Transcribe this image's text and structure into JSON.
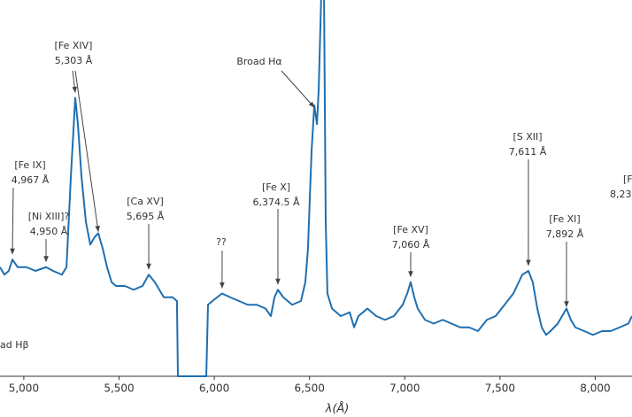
{
  "chart_data": {
    "type": "line",
    "x_label": "λ(Å)",
    "x": [
      4875,
      4898,
      4921,
      4940,
      4968,
      5014,
      5061,
      5117,
      5154,
      5200,
      5224,
      5247,
      5270,
      5284,
      5303,
      5326,
      5349,
      5372,
      5391,
      5414,
      5437,
      5461,
      5484,
      5530,
      5577,
      5623,
      5656,
      5688,
      5735,
      5781,
      5804,
      5809,
      5958,
      5967,
      5990,
      6041,
      6083,
      6130,
      6176,
      6223,
      6269,
      6297,
      6316,
      6334,
      6362,
      6409,
      6455,
      6478,
      6492,
      6502,
      6511,
      6525,
      6539,
      6548,
      6562,
      6576,
      6585,
      6594,
      6618,
      6664,
      6711,
      6734,
      6757,
      6804,
      6850,
      6896,
      6943,
      6989,
      7013,
      7031,
      7050,
      7068,
      7106,
      7152,
      7199,
      7245,
      7291,
      7338,
      7384,
      7431,
      7477,
      7524,
      7570,
      7617,
      7649,
      7672,
      7696,
      7719,
      7742,
      7765,
      7803,
      7849,
      7872,
      7896,
      7942,
      7988,
      8035,
      8081,
      8128,
      8174,
      8193
    ],
    "series": [
      {
        "color": "#1f6fb0",
        "values": [
          0.29,
          0.27,
          0.28,
          0.31,
          0.29,
          0.29,
          0.28,
          0.29,
          0.28,
          0.27,
          0.29,
          0.53,
          0.74,
          0.67,
          0.53,
          0.41,
          0.35,
          0.37,
          0.38,
          0.34,
          0.29,
          0.25,
          0.24,
          0.24,
          0.23,
          0.24,
          0.27,
          0.25,
          0.21,
          0.21,
          0.2,
          0,
          0,
          0.19,
          0.2,
          0.22,
          0.21,
          0.2,
          0.19,
          0.19,
          0.18,
          0.16,
          0.21,
          0.23,
          0.21,
          0.19,
          0.2,
          0.25,
          0.34,
          0.48,
          0.6,
          0.72,
          0.67,
          0.76,
          1.02,
          1.02,
          0.41,
          0.22,
          0.18,
          0.16,
          0.17,
          0.13,
          0.16,
          0.18,
          0.16,
          0.15,
          0.16,
          0.19,
          0.22,
          0.25,
          0.21,
          0.18,
          0.15,
          0.14,
          0.15,
          0.14,
          0.13,
          0.13,
          0.12,
          0.15,
          0.16,
          0.19,
          0.22,
          0.27,
          0.28,
          0.25,
          0.18,
          0.13,
          0.11,
          0.12,
          0.14,
          0.18,
          0.15,
          0.13,
          0.12,
          0.11,
          0.12,
          0.12,
          0.13,
          0.14,
          0.16
        ]
      }
    ],
    "xlim": [
      4875,
      8193
    ],
    "ylim": [
      0,
      1
    ],
    "xticks": [
      {
        "value": 5000,
        "label": "5,000"
      },
      {
        "value": 5500,
        "label": "5,500"
      },
      {
        "value": 6000,
        "label": "6,000"
      },
      {
        "value": 6500,
        "label": "6,500"
      },
      {
        "value": 7000,
        "label": "7,000"
      },
      {
        "value": 7500,
        "label": "7,500"
      },
      {
        "value": 8000,
        "label": "8,000"
      }
    ],
    "annotations": [
      {
        "lines": [
          "[Fe XIV]",
          "5,303 Å"
        ],
        "x": [
          5270,
          5391
        ],
        "y": [
          0.75,
          0.38
        ]
      },
      {
        "lines": [
          "Broad Hα"
        ],
        "x": [
          6525
        ],
        "y": [
          0.71
        ]
      },
      {
        "lines": [
          "[Fe IX]",
          "4,967 Å"
        ],
        "x": [
          4940
        ],
        "y": [
          0.32
        ]
      },
      {
        "lines": [
          "[Ni XIII]?",
          "4,950 Å"
        ],
        "x": [
          5117
        ],
        "y": [
          0.3
        ]
      },
      {
        "lines": [
          "[Ca XV]",
          "5,695 Å"
        ],
        "x": [
          5656
        ],
        "y": [
          0.28
        ]
      },
      {
        "lines": [
          "??"
        ],
        "x": [
          6041
        ],
        "y": [
          0.23
        ]
      },
      {
        "lines": [
          "[Fe X]",
          "6,374.5 Å"
        ],
        "x": [
          6334
        ],
        "y": [
          0.24
        ]
      },
      {
        "lines": [
          "[Fe XV]",
          "7,060 Å"
        ],
        "x": [
          7031
        ],
        "y": [
          0.26
        ]
      },
      {
        "lines": [
          "[S XII]",
          "7,611 Å"
        ],
        "x": [
          7649
        ],
        "y": [
          0.29
        ]
      },
      {
        "lines": [
          "[Fe XI]",
          "7,892 Å"
        ],
        "x": [
          7849
        ],
        "y": [
          0.18
        ]
      },
      {
        "lines": [
          "[Fe",
          "8,23"
        ]
      },
      {
        "lines": [
          "ad Hβ"
        ]
      }
    ]
  }
}
